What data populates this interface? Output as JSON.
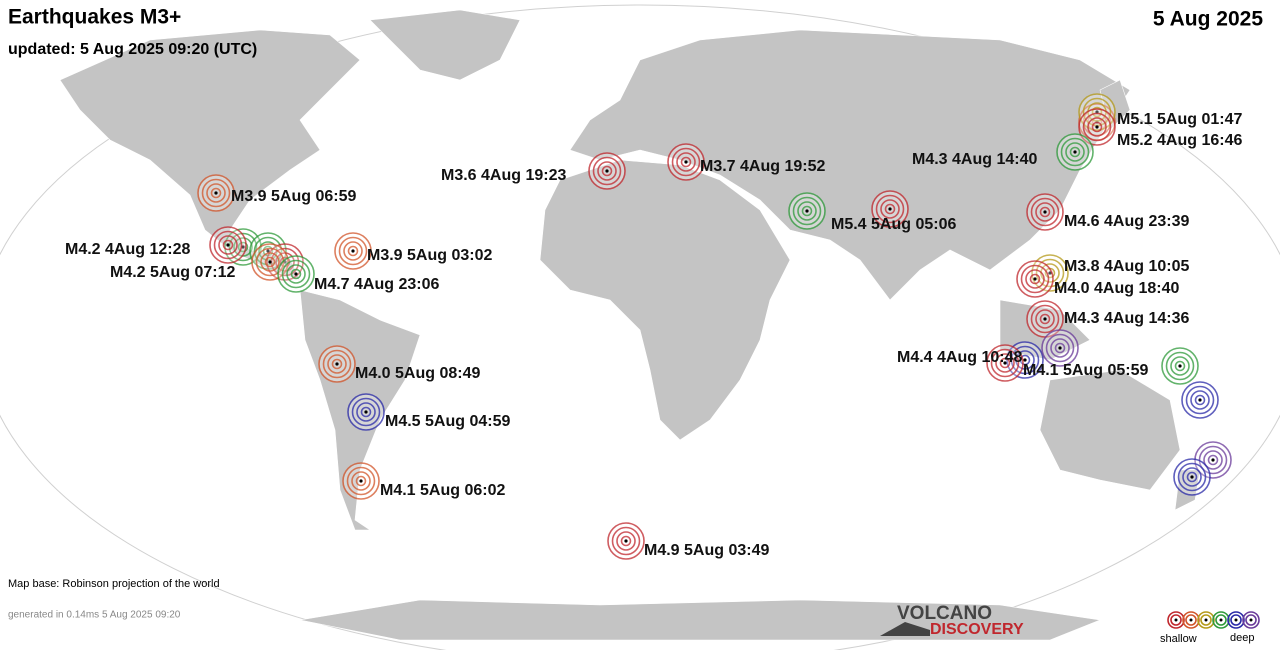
{
  "header": {
    "title": "Earthquakes M3+",
    "date": "5 Aug 2025",
    "updated": "updated:  5 Aug 2025 09:20 (UTC)"
  },
  "quakes": [
    {
      "label": "M5.1  5Aug 01:47"
    },
    {
      "label": "M5.2  4Aug 16:46"
    },
    {
      "label": "M4.3  4Aug 14:40"
    },
    {
      "label": "M3.7  4Aug 19:52"
    },
    {
      "label": "M3.6  4Aug 19:23"
    },
    {
      "label": "M3.9  5Aug 06:59"
    },
    {
      "label": "M5.4  5Aug 05:06"
    },
    {
      "label": "M4.6  4Aug 23:39"
    },
    {
      "label": "M4.2  4Aug 12:28"
    },
    {
      "label": "M3.9  5Aug 03:02"
    },
    {
      "label": "M4.2  5Aug 07:12"
    },
    {
      "label": "M4.7  4Aug 23:06"
    },
    {
      "label": "M3.8  4Aug 10:05"
    },
    {
      "label": "M4.0  4Aug 18:40"
    },
    {
      "label": "M4.3  4Aug 14:36"
    },
    {
      "label": "M4.4  4Aug 10:48"
    },
    {
      "label": "M4.1  5Aug 05:59"
    },
    {
      "label": "M4.0  5Aug 08:49"
    },
    {
      "label": "M4.5  5Aug 04:59"
    },
    {
      "label": "M4.1  5Aug 06:02"
    },
    {
      "label": "M4.9  5Aug 03:49"
    }
  ],
  "footer": {
    "map_base": "Map base: Robinson projection of the world",
    "generated": "generated in 0.14ms  5 Aug 2025 09:20",
    "logo_top": "VOLCANO",
    "logo_bottom": "DISCOVERY"
  },
  "legend": {
    "shallow": "shallow",
    "deep": "deep"
  }
}
